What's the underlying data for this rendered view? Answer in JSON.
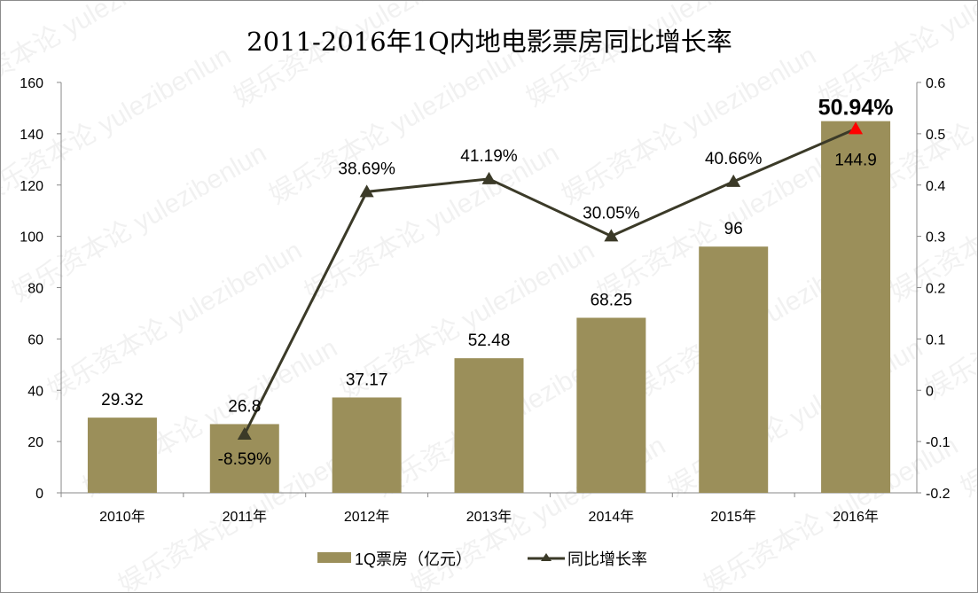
{
  "watermark": "娱乐资本论 yulezibenlun",
  "chart_data": {
    "type": "bar+line",
    "title": "2011-2016年1Q内地电影票房同比增长率",
    "categories": [
      "2010年",
      "2011年",
      "2012年",
      "2013年",
      "2014年",
      "2015年",
      "2016年"
    ],
    "series": [
      {
        "name": "1Q票房（亿元）",
        "type": "bar",
        "axis": "left",
        "color": "#9b8f5a",
        "values": [
          29.32,
          26.8,
          37.17,
          52.48,
          68.25,
          96,
          144.9
        ],
        "labels": [
          "29.32",
          "26.8",
          "37.17",
          "52.48",
          "68.25",
          "96",
          "144.9"
        ]
      },
      {
        "name": "同比增长率",
        "type": "line",
        "axis": "right",
        "color": "#3b3a28",
        "highlight_color": "#ff0000",
        "values": [
          null,
          -0.0859,
          0.3869,
          0.4119,
          0.3005,
          0.4066,
          0.5094
        ],
        "labels": [
          "",
          "-8.59%",
          "38.69%",
          "41.19%",
          "30.05%",
          "40.66%",
          "50.94%"
        ]
      }
    ],
    "ylim_left": [
      0,
      160
    ],
    "yticks_left": [
      "0",
      "20",
      "40",
      "60",
      "80",
      "100",
      "120",
      "140",
      "160"
    ],
    "ylim_right": [
      -0.2,
      0.6
    ],
    "yticks_right": [
      "-0.2",
      "-0.1",
      "0",
      "0.1",
      "0.2",
      "0.3",
      "0.4",
      "0.5",
      "0.6"
    ],
    "grid": false,
    "legend": "bottom"
  }
}
